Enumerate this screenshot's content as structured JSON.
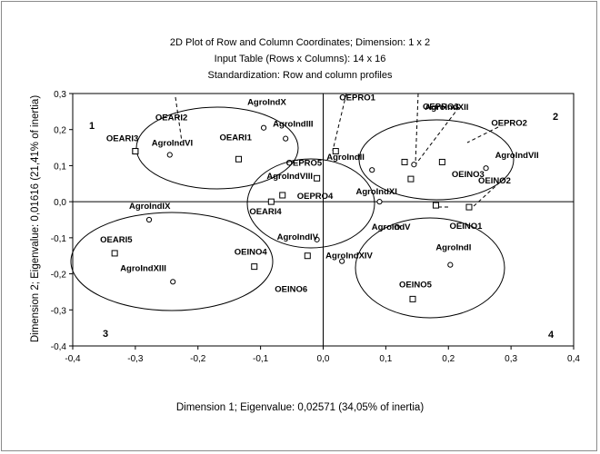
{
  "chart_data": {
    "type": "scatter",
    "title_lines": [
      "2D Plot of Row and Column Coordinates; Dimension:  1 x  2",
      "Input Table (Rows x Columns): 14 x 16",
      "Standardization: Row and column profiles"
    ],
    "xlabel": "Dimension 1; Eigenvalue: 0,02571 (34,05% of inertia)",
    "ylabel": "Dimension 2; Eigenvalue: 0,01616 (21,41% of inertia)",
    "xlim": [
      -0.4,
      0.4
    ],
    "ylim": [
      -0.4,
      0.3
    ],
    "xticks": [
      -0.4,
      -0.3,
      -0.2,
      -0.1,
      0.0,
      0.1,
      0.2,
      0.3,
      0.4
    ],
    "yticks": [
      -0.4,
      -0.3,
      -0.2,
      -0.1,
      0.0,
      0.1,
      0.2,
      0.3
    ],
    "xtick_labels": [
      "-0,4",
      "-0,3",
      "-0,2",
      "-0,1",
      "0,0",
      "0,1",
      "0,2",
      "0,3",
      "0,4"
    ],
    "ytick_labels": [
      "-0,4",
      "-0,3",
      "-0,2",
      "-0,1",
      "0,0",
      "0,1",
      "0,2",
      "0,3"
    ],
    "grid": false,
    "quadrant_labels": [
      "1",
      "2",
      "3",
      "4"
    ],
    "series": [
      {
        "marker": "circle",
        "points": [
          {
            "label": "AgroIndVI",
            "x": -0.245,
            "y": 0.13
          },
          {
            "label": "AgroIndX",
            "x": -0.095,
            "y": 0.205
          },
          {
            "label": "AgroIndIII",
            "x": -0.06,
            "y": 0.175
          },
          {
            "label": "AgroIndII",
            "x": 0.078,
            "y": 0.088
          },
          {
            "label": "AgroIndXII",
            "x": 0.145,
            "y": 0.103
          },
          {
            "label": "AgroIndVII",
            "x": 0.26,
            "y": 0.093
          },
          {
            "label": "AgroIndVIII",
            "x": -0.083,
            "y": 0.0
          },
          {
            "label": "AgroIndXI",
            "x": 0.09,
            "y": 0.0
          },
          {
            "label": "AgroIndIV",
            "x": -0.01,
            "y": -0.105
          },
          {
            "label": "AgroIndV",
            "x": 0.118,
            "y": -0.07
          },
          {
            "label": "AgroIndIX",
            "x": -0.278,
            "y": -0.05
          },
          {
            "label": "AgroIndXIV",
            "x": 0.03,
            "y": -0.165
          },
          {
            "label": "AgroIndXIII",
            "x": -0.24,
            "y": -0.222
          },
          {
            "label": "AgroIndI",
            "x": 0.203,
            "y": -0.175
          }
        ]
      },
      {
        "marker": "square",
        "points": [
          {
            "label": "OEARI2",
            "x": -0.3,
            "y": 0.14
          },
          {
            "label": "OEARI3",
            "x": -0.3,
            "y": 0.14
          },
          {
            "label": "OEARI1",
            "x": -0.135,
            "y": 0.118
          },
          {
            "label": "OEPRO5",
            "x": -0.01,
            "y": 0.065
          },
          {
            "label": "OEPRO1",
            "x": 0.02,
            "y": 0.14
          },
          {
            "label": "OEPRO3",
            "x": 0.13,
            "y": 0.11
          },
          {
            "label": "OEPRO2",
            "x": 0.19,
            "y": 0.11
          },
          {
            "label": "OEPRO4",
            "x": -0.065,
            "y": 0.018
          },
          {
            "label": "OEINO3",
            "x": 0.14,
            "y": 0.063
          },
          {
            "label": "OEINO1",
            "x": 0.18,
            "y": -0.01
          },
          {
            "label": "OEINO2",
            "x": 0.233,
            "y": -0.015
          },
          {
            "label": "OEARI4",
            "x": -0.083,
            "y": 0.0
          },
          {
            "label": "OEARI5",
            "x": -0.333,
            "y": -0.143
          },
          {
            "label": "OEINO4",
            "x": -0.11,
            "y": -0.18
          },
          {
            "label": "OEINO6",
            "x": -0.025,
            "y": -0.15
          },
          {
            "label": "OEINO5",
            "x": 0.143,
            "y": -0.27
          }
        ]
      }
    ]
  }
}
